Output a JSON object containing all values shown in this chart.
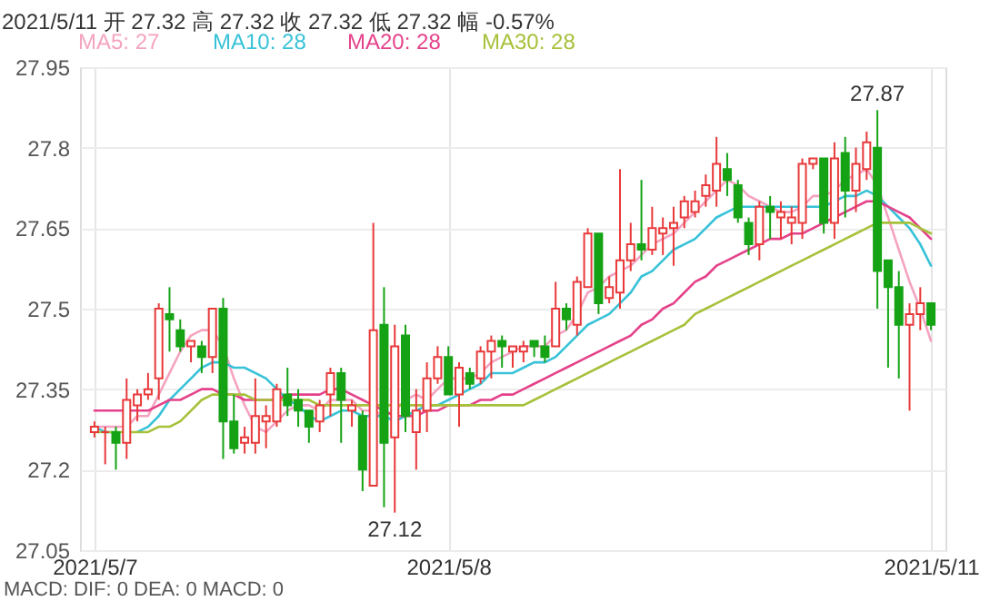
{
  "chart_data": {
    "type": "candlestick",
    "title": "2021/5/11  开 27.32  高 27.32  收 27.32  低 27.32  幅 -0.57%",
    "categories": [
      "2021/5/7",
      null,
      null,
      null,
      null,
      null,
      null,
      null,
      null,
      null,
      null,
      null,
      null,
      null,
      null,
      null,
      null,
      null,
      null,
      null,
      null,
      null,
      null,
      null,
      null,
      null,
      null,
      null,
      null,
      null,
      null,
      null,
      null,
      "2021/5/8",
      null,
      null,
      null,
      null,
      null,
      null,
      null,
      null,
      null,
      null,
      null,
      null,
      null,
      null,
      null,
      null,
      null,
      null,
      null,
      null,
      null,
      null,
      null,
      null,
      null,
      null,
      null,
      null,
      null,
      null,
      null,
      null,
      null,
      null,
      null,
      null,
      null,
      null,
      null,
      null,
      null,
      null,
      null,
      null,
      "2021/5/11"
    ],
    "ohlc": [
      [
        27.27,
        27.29,
        27.26,
        27.28
      ],
      [
        27.27,
        27.28,
        27.21,
        27.27
      ],
      [
        27.27,
        27.28,
        27.2,
        27.25
      ],
      [
        27.25,
        27.37,
        27.22,
        27.33
      ],
      [
        27.32,
        27.35,
        27.29,
        27.34
      ],
      [
        27.34,
        27.38,
        27.33,
        27.35
      ],
      [
        27.37,
        27.51,
        27.33,
        27.5
      ],
      [
        27.49,
        27.54,
        27.42,
        27.48
      ],
      [
        27.46,
        27.48,
        27.42,
        27.43
      ],
      [
        27.43,
        27.44,
        27.4,
        27.44
      ],
      [
        27.43,
        27.44,
        27.38,
        27.41
      ],
      [
        27.41,
        27.5,
        27.38,
        27.5
      ],
      [
        27.5,
        27.52,
        27.22,
        27.29
      ],
      [
        27.29,
        27.34,
        27.23,
        27.24
      ],
      [
        27.25,
        27.28,
        27.23,
        27.26
      ],
      [
        27.25,
        27.37,
        27.23,
        27.3
      ],
      [
        27.29,
        27.32,
        27.24,
        27.3
      ],
      [
        27.29,
        27.36,
        27.28,
        27.35
      ],
      [
        27.34,
        27.39,
        27.3,
        27.32
      ],
      [
        27.33,
        27.35,
        27.28,
        27.31
      ],
      [
        27.31,
        27.31,
        27.25,
        27.28
      ],
      [
        27.29,
        27.33,
        27.27,
        27.32
      ],
      [
        27.34,
        27.39,
        27.3,
        27.38
      ],
      [
        27.38,
        27.39,
        27.25,
        27.33
      ],
      [
        27.31,
        27.33,
        27.28,
        27.32
      ],
      [
        27.3,
        27.31,
        27.16,
        27.2
      ],
      [
        27.17,
        27.66,
        27.17,
        27.46
      ],
      [
        27.47,
        27.54,
        27.13,
        27.25
      ],
      [
        27.26,
        27.47,
        27.12,
        27.43
      ],
      [
        27.45,
        27.47,
        27.27,
        27.3
      ],
      [
        27.27,
        27.35,
        27.2,
        27.31
      ],
      [
        27.31,
        27.4,
        27.27,
        27.37
      ],
      [
        27.37,
        27.43,
        27.36,
        27.41
      ],
      [
        27.41,
        27.43,
        27.34,
        27.34
      ],
      [
        27.34,
        27.4,
        27.28,
        27.39
      ],
      [
        27.38,
        27.39,
        27.35,
        27.36
      ],
      [
        27.37,
        27.43,
        27.36,
        27.42
      ],
      [
        27.42,
        27.45,
        27.37,
        27.44
      ],
      [
        27.44,
        27.45,
        27.39,
        27.43
      ],
      [
        27.42,
        27.43,
        27.39,
        27.43
      ],
      [
        27.42,
        27.44,
        27.4,
        27.43
      ],
      [
        27.44,
        27.44,
        27.41,
        27.43
      ],
      [
        27.43,
        27.45,
        27.4,
        27.41
      ],
      [
        27.43,
        27.55,
        27.43,
        27.5
      ],
      [
        27.5,
        27.51,
        27.46,
        27.48
      ],
      [
        27.47,
        27.56,
        27.45,
        27.55
      ],
      [
        27.54,
        27.65,
        27.54,
        27.64
      ],
      [
        27.64,
        27.64,
        27.49,
        27.51
      ],
      [
        27.52,
        27.56,
        27.51,
        27.54
      ],
      [
        27.53,
        27.76,
        27.5,
        27.59
      ],
      [
        27.59,
        27.66,
        27.57,
        27.62
      ],
      [
        27.62,
        27.74,
        27.59,
        27.61
      ],
      [
        27.61,
        27.69,
        27.6,
        27.65
      ],
      [
        27.64,
        27.67,
        27.6,
        27.65
      ],
      [
        27.65,
        27.69,
        27.58,
        27.66
      ],
      [
        27.67,
        27.71,
        27.65,
        27.7
      ],
      [
        27.68,
        27.72,
        27.67,
        27.7
      ],
      [
        27.71,
        27.75,
        27.69,
        27.73
      ],
      [
        27.72,
        27.82,
        27.69,
        27.77
      ],
      [
        27.76,
        27.79,
        27.71,
        27.74
      ],
      [
        27.73,
        27.74,
        27.66,
        27.67
      ],
      [
        27.66,
        27.67,
        27.6,
        27.62
      ],
      [
        27.62,
        27.7,
        27.59,
        27.69
      ],
      [
        27.69,
        27.71,
        27.63,
        27.68
      ],
      [
        27.67,
        27.7,
        27.63,
        27.68
      ],
      [
        27.66,
        27.69,
        27.62,
        27.67
      ],
      [
        27.66,
        27.78,
        27.63,
        27.77
      ],
      [
        27.77,
        27.78,
        27.76,
        27.78
      ],
      [
        27.78,
        27.78,
        27.64,
        27.66
      ],
      [
        27.66,
        27.81,
        27.63,
        27.78
      ],
      [
        27.79,
        27.82,
        27.67,
        27.72
      ],
      [
        27.72,
        27.8,
        27.68,
        27.77
      ],
      [
        27.76,
        27.83,
        27.74,
        27.81
      ],
      [
        27.8,
        27.87,
        27.5,
        27.57
      ],
      [
        27.59,
        27.59,
        27.39,
        27.54
      ],
      [
        27.54,
        27.57,
        27.37,
        27.47
      ],
      [
        27.47,
        27.51,
        27.31,
        27.49
      ],
      [
        27.49,
        27.54,
        27.46,
        27.51
      ],
      [
        27.51,
        27.51,
        27.46,
        27.47
      ]
    ],
    "series": [
      {
        "name": "MA5: 27",
        "type": "line",
        "color": "#f4a3c0",
        "values": [
          27.28,
          27.28,
          27.28,
          27.28,
          27.3,
          27.3,
          27.34,
          27.38,
          27.42,
          27.45,
          27.46,
          27.46,
          27.43,
          27.37,
          27.32,
          27.28,
          27.27,
          27.29,
          27.31,
          27.32,
          27.32,
          27.31,
          27.33,
          27.33,
          27.33,
          27.31,
          27.31,
          27.3,
          27.31,
          27.33,
          27.34,
          27.33,
          27.35,
          27.37,
          27.37,
          27.37,
          27.38,
          27.4,
          27.41,
          27.42,
          27.43,
          27.43,
          27.43,
          27.45,
          27.46,
          27.49,
          27.53,
          27.54,
          27.56,
          27.57,
          27.58,
          27.6,
          27.62,
          27.63,
          27.64,
          27.66,
          27.68,
          27.7,
          27.72,
          27.74,
          27.73,
          27.71,
          27.7,
          27.69,
          27.68,
          27.68,
          27.69,
          27.71,
          27.71,
          27.72,
          27.74,
          27.75,
          27.76,
          27.73,
          27.67,
          27.61,
          27.55,
          27.5,
          27.44
        ]
      },
      {
        "name": "MA10: 28",
        "type": "line",
        "color": "#37c2d8",
        "values": [
          27.28,
          27.27,
          27.27,
          null,
          27.27,
          27.28,
          27.3,
          27.33,
          27.35,
          27.37,
          27.39,
          27.4,
          27.4,
          27.39,
          27.39,
          27.38,
          27.37,
          27.35,
          27.33,
          27.32,
          27.3,
          27.29,
          27.3,
          27.31,
          27.31,
          27.3,
          27.3,
          27.3,
          27.29,
          27.3,
          27.31,
          27.32,
          27.32,
          27.33,
          27.34,
          27.35,
          27.36,
          27.38,
          27.38,
          27.38,
          27.39,
          27.4,
          27.4,
          27.41,
          27.43,
          27.45,
          27.47,
          27.48,
          27.49,
          27.51,
          27.53,
          27.56,
          27.57,
          27.59,
          27.61,
          27.62,
          27.63,
          27.65,
          27.67,
          27.68,
          27.69,
          27.69,
          27.69,
          27.69,
          27.69,
          27.69,
          27.69,
          27.69,
          27.69,
          27.7,
          27.71,
          27.71,
          27.72,
          27.71,
          27.69,
          27.67,
          27.65,
          27.62,
          27.58
        ]
      },
      {
        "name": "MA20: 28",
        "type": "line",
        "color": "#e5418a",
        "values": [
          27.31,
          27.31,
          27.31,
          27.31,
          27.31,
          27.31,
          27.32,
          27.33,
          27.33,
          27.34,
          27.35,
          27.35,
          27.34,
          27.34,
          27.33,
          27.33,
          27.33,
          27.33,
          27.34,
          27.34,
          27.34,
          27.34,
          27.35,
          27.35,
          27.34,
          27.33,
          27.32,
          27.31,
          27.3,
          27.3,
          27.3,
          27.31,
          27.31,
          27.32,
          27.32,
          27.32,
          27.33,
          27.33,
          27.34,
          27.34,
          27.35,
          27.36,
          27.37,
          27.38,
          27.39,
          27.4,
          27.41,
          27.42,
          27.43,
          27.44,
          27.45,
          27.47,
          27.48,
          27.5,
          27.51,
          27.53,
          27.55,
          27.56,
          27.58,
          27.59,
          27.6,
          27.61,
          27.62,
          27.63,
          27.63,
          27.64,
          27.64,
          27.65,
          27.66,
          27.67,
          27.68,
          27.69,
          27.7,
          27.7,
          27.69,
          27.68,
          27.67,
          27.65,
          27.63
        ]
      },
      {
        "name": "MA30: 28",
        "type": "line",
        "color": "#a6c13a",
        "values": [
          27.27,
          27.27,
          27.27,
          27.27,
          27.27,
          27.27,
          27.28,
          27.28,
          27.29,
          27.31,
          27.33,
          27.34,
          27.34,
          27.34,
          27.34,
          27.33,
          27.33,
          27.33,
          27.33,
          27.33,
          27.33,
          27.32,
          27.32,
          27.32,
          27.32,
          27.32,
          27.32,
          27.32,
          27.32,
          27.32,
          27.32,
          27.32,
          27.32,
          27.32,
          27.32,
          27.32,
          27.32,
          27.32,
          27.32,
          27.32,
          27.32,
          27.33,
          27.34,
          27.35,
          27.36,
          27.37,
          27.38,
          27.39,
          27.4,
          27.41,
          27.42,
          27.43,
          27.44,
          27.45,
          27.46,
          27.47,
          27.49,
          27.5,
          27.51,
          27.52,
          27.53,
          27.54,
          27.55,
          27.56,
          27.57,
          27.58,
          27.59,
          27.6,
          27.61,
          27.62,
          27.63,
          27.64,
          27.65,
          27.66,
          27.66,
          27.66,
          27.66,
          27.65,
          27.64
        ]
      }
    ],
    "ylim": [
      27.05,
      27.95
    ],
    "yticks": [
      27.05,
      27.2,
      27.35,
      27.5,
      27.65,
      27.8,
      27.95
    ],
    "grid": true,
    "legend": "top",
    "annotations": [
      {
        "text": "27.87",
        "y": 27.87
      },
      {
        "text": "27.12",
        "y": 27.12
      },
      "MACD:  DIF: 0          DEA: 0          MACD: 0"
    ]
  }
}
